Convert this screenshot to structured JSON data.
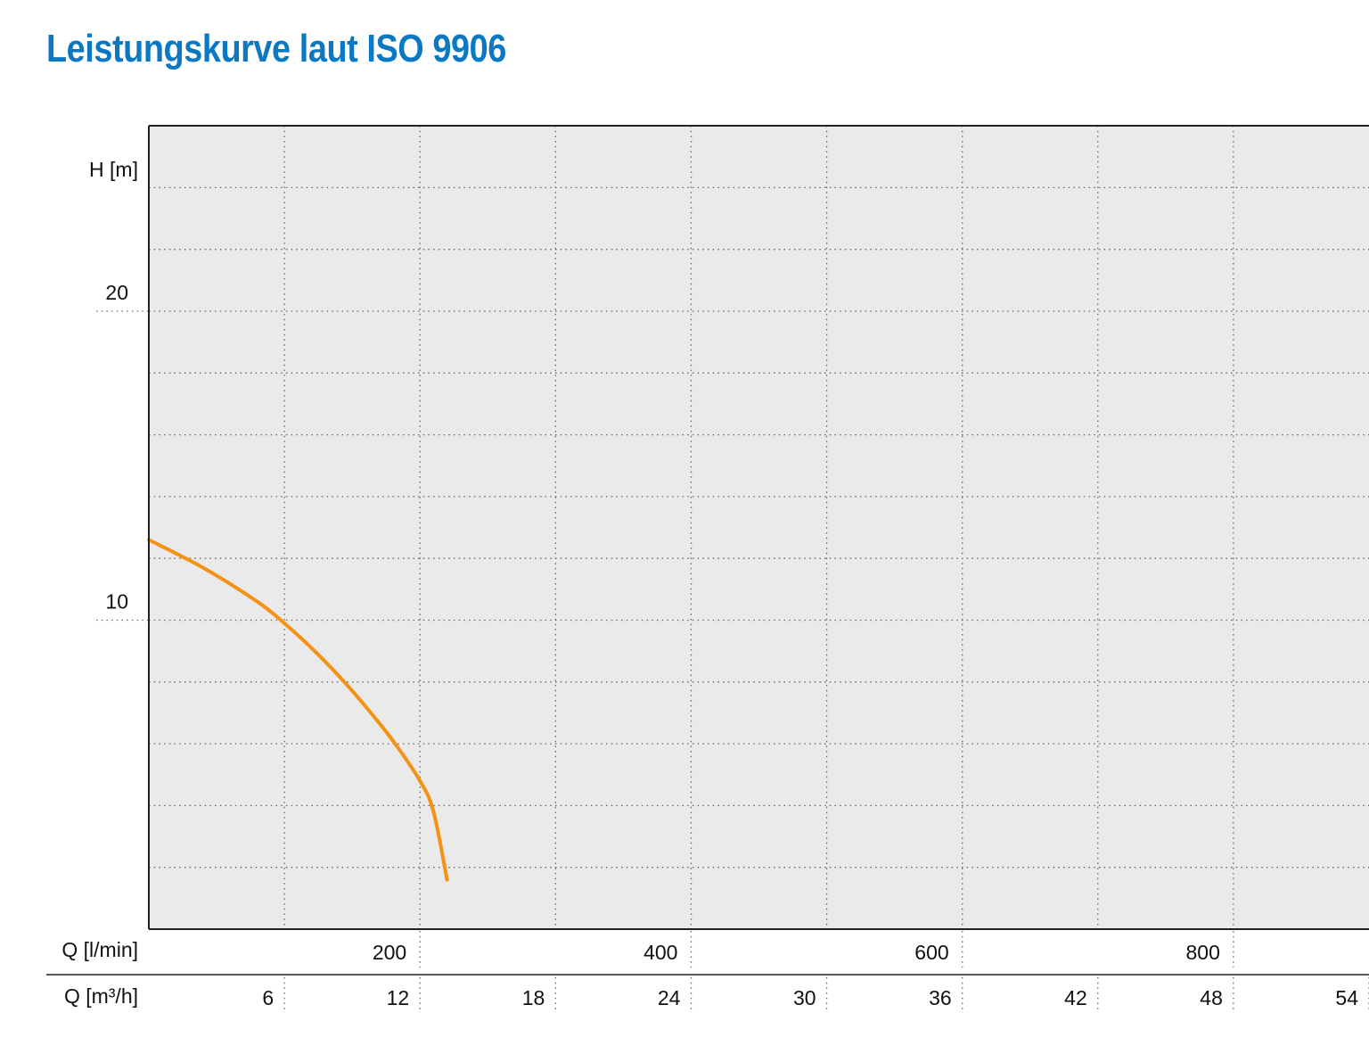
{
  "title": "Leistungskurve laut ISO 9906",
  "colors": {
    "title": "#0a78c2",
    "curve": "#f39214",
    "plot_bg": "#eaeaea",
    "grid": "#666666",
    "axis": "#222222"
  },
  "chart_data": {
    "type": "line",
    "title": "Leistungskurve laut ISO 9906",
    "ylabel": "H [m]",
    "y_tick_labels": [
      "10",
      "20"
    ],
    "ylim": [
      0,
      26
    ],
    "y_grid_step": 2,
    "grid": true,
    "x_axes": [
      {
        "label": "Q [l/min]",
        "unit": "l/min",
        "ticks": [
          200,
          400,
          600,
          800
        ],
        "tick_labels": [
          "200",
          "400",
          "600",
          "800"
        ],
        "range": [
          0,
          900
        ]
      },
      {
        "label": "Q [m³/h]",
        "unit": "m³/h",
        "ticks": [
          6,
          12,
          18,
          24,
          30,
          36,
          42,
          48,
          54
        ],
        "tick_labels": [
          "6",
          "12",
          "18",
          "24",
          "30",
          "36",
          "42",
          "48",
          "54"
        ],
        "range": [
          0,
          54
        ]
      }
    ],
    "series": [
      {
        "x_unit": "l/min",
        "x": [
          0,
          40,
          80,
          100,
          120,
          140,
          160,
          180,
          200,
          210,
          220
        ],
        "y": [
          12.6,
          11.7,
          10.6,
          9.9,
          9.1,
          8.2,
          7.2,
          6.1,
          4.8,
          3.8,
          1.6
        ]
      }
    ]
  }
}
